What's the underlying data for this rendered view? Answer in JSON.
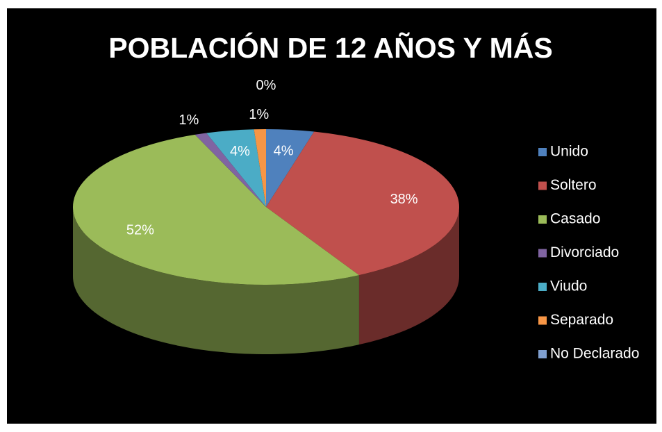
{
  "chart_data": {
    "type": "pie",
    "title": "POBLACIÓN DE 12 AÑOS Y MÁS",
    "categories": [
      "Unido",
      "Soltero",
      "Casado",
      "Divorciado",
      "Viudo",
      "Separado",
      "No Declarado"
    ],
    "values": [
      4,
      38,
      52,
      1,
      4,
      1,
      0
    ],
    "value_labels": [
      "4%",
      "38%",
      "52%",
      "1%",
      "4%",
      "1%",
      "0%"
    ],
    "colors": [
      "#4f81bd",
      "#c0504d",
      "#9bbb59",
      "#8064a2",
      "#4bacc6",
      "#f79646",
      "#7f9fcf"
    ],
    "legend": "right"
  }
}
